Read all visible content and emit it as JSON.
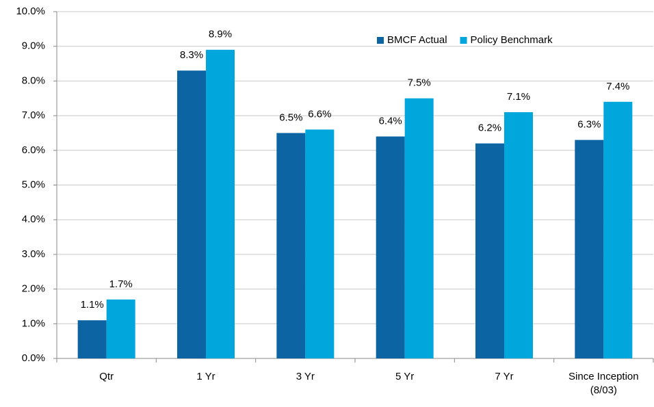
{
  "chart_data": {
    "type": "bar",
    "categories": [
      "Qtr",
      "1 Yr",
      "3 Yr",
      "5 Yr",
      "7 Yr",
      "Since Inception (8/03)"
    ],
    "series": [
      {
        "name": "BMCF Actual",
        "color": "#0c64a3",
        "values": [
          1.1,
          8.3,
          6.5,
          6.4,
          6.2,
          6.3
        ],
        "value_labels": [
          "1.1%",
          "8.3%",
          "6.5%",
          "6.4%",
          "6.2%",
          "6.3%"
        ]
      },
      {
        "name": "Policy Benchmark",
        "color": "#00a6dc",
        "values": [
          1.7,
          8.9,
          6.6,
          7.5,
          7.1,
          7.4
        ],
        "value_labels": [
          "1.7%",
          "8.9%",
          "6.6%",
          "7.5%",
          "7.1%",
          "7.4%"
        ]
      }
    ],
    "ylim": [
      0,
      10
    ],
    "yticks": [
      {
        "value": 0,
        "label": "0.0%"
      },
      {
        "value": 1,
        "label": "1.0%"
      },
      {
        "value": 2,
        "label": "2.0%"
      },
      {
        "value": 3,
        "label": "3.0%"
      },
      {
        "value": 4,
        "label": "4.0%"
      },
      {
        "value": 5,
        "label": "5.0%"
      },
      {
        "value": 6,
        "label": "6.0%"
      },
      {
        "value": 7,
        "label": "7.0%"
      },
      {
        "value": 8,
        "label": "8.0%"
      },
      {
        "value": 9,
        "label": "9.0%"
      },
      {
        "value": 10,
        "label": "10.0%"
      }
    ],
    "grid": true,
    "legend": "top-right"
  }
}
